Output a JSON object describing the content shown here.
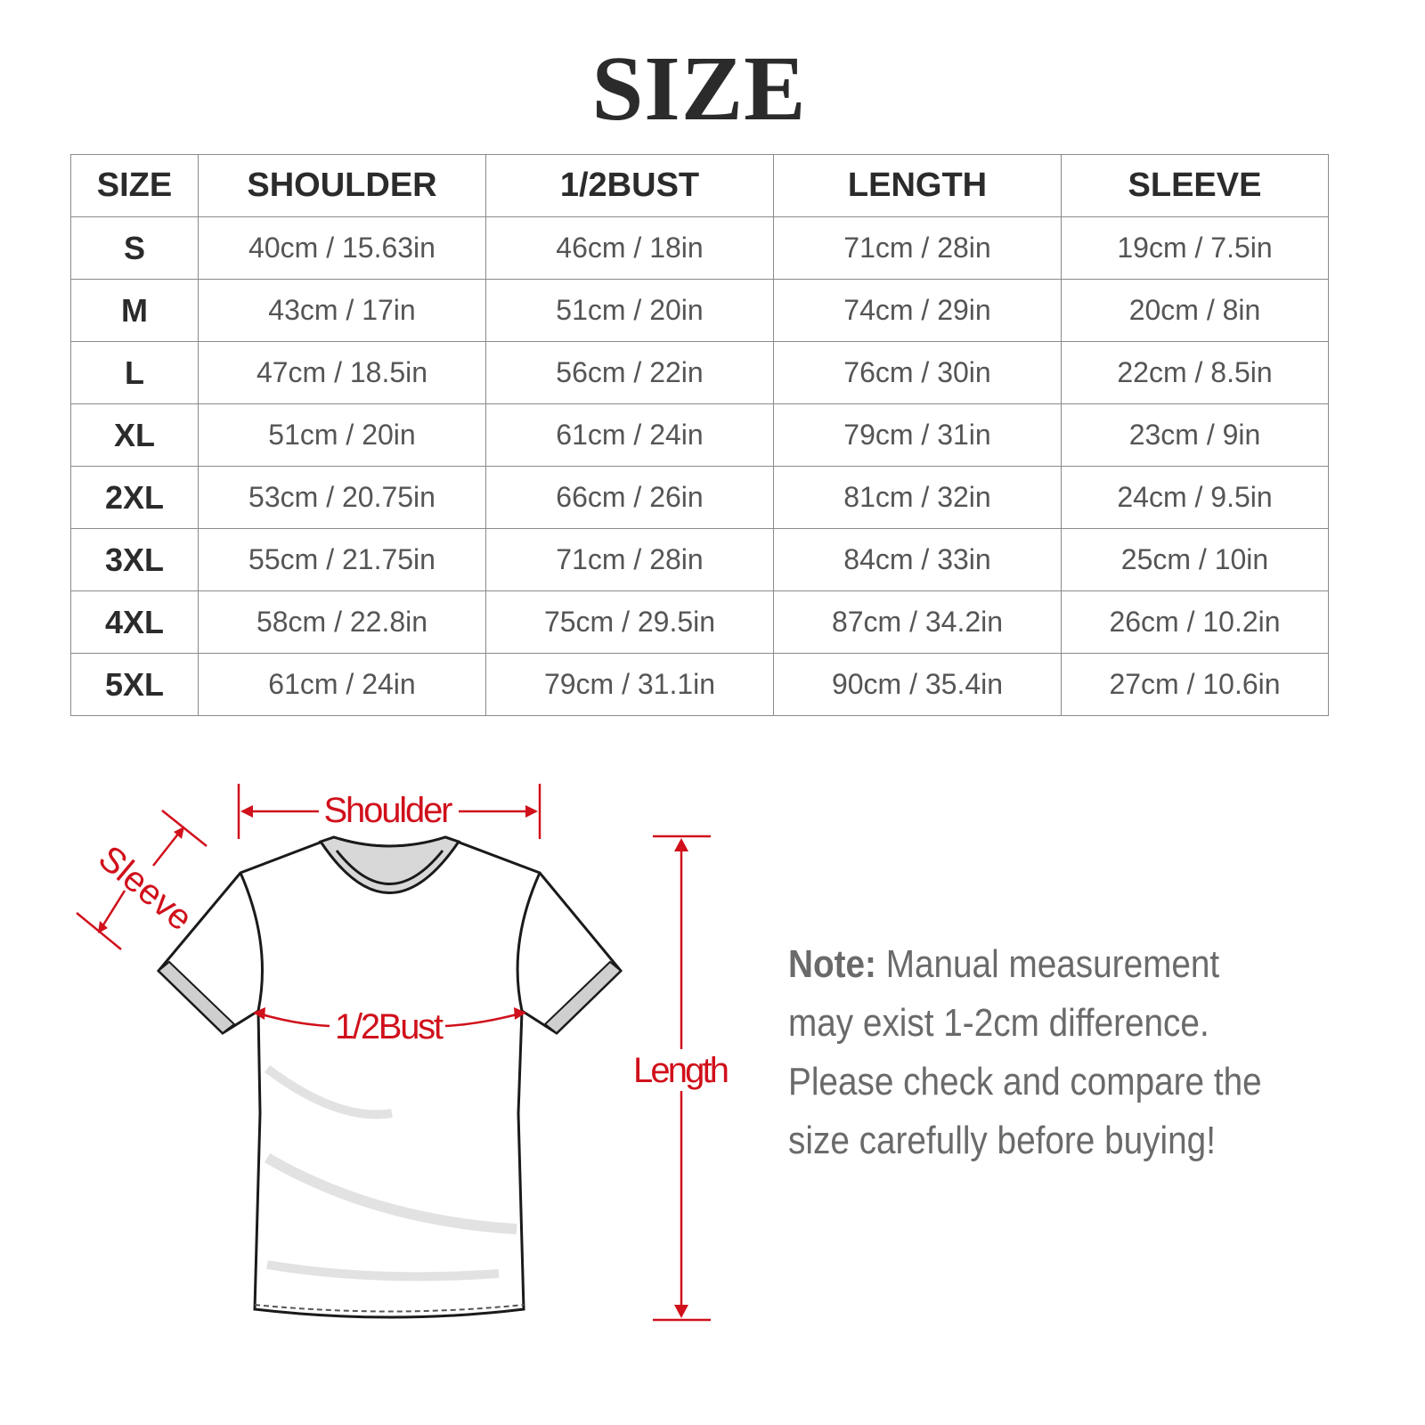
{
  "title": "SIZE",
  "table": {
    "headers": [
      "SIZE",
      "SHOULDER",
      "1/2BUST",
      "LENGTH",
      "SLEEVE"
    ],
    "rows": [
      [
        "S",
        "40cm / 15.63in",
        "46cm / 18in",
        "71cm / 28in",
        "19cm / 7.5in"
      ],
      [
        "M",
        "43cm / 17in",
        "51cm / 20in",
        "74cm / 29in",
        "20cm / 8in"
      ],
      [
        "L",
        "47cm / 18.5in",
        "56cm / 22in",
        "76cm / 30in",
        "22cm / 8.5in"
      ],
      [
        "XL",
        "51cm / 20in",
        "61cm / 24in",
        "79cm / 31in",
        "23cm / 9in"
      ],
      [
        "2XL",
        "53cm / 20.75in",
        "66cm / 26in",
        "81cm / 32in",
        "24cm / 9.5in"
      ],
      [
        "3XL",
        "55cm / 21.75in",
        "71cm / 28in",
        "84cm / 33in",
        "25cm / 10in"
      ],
      [
        "4XL",
        "58cm / 22.8in",
        "75cm / 29.5in",
        "87cm / 34.2in",
        "26cm / 10.2in"
      ],
      [
        "5XL",
        "61cm / 24in",
        "79cm / 31.1in",
        "90cm / 35.4in",
        "27cm / 10.6in"
      ]
    ]
  },
  "diagram": {
    "labels": {
      "shoulder": "Shoulder",
      "sleeve": "Sleeve",
      "bust": "1/2Bust",
      "length": "Length"
    },
    "accent_color": "#d0101b"
  },
  "note": {
    "label": "Note:",
    "text": " Manual measurement may exist 1-2cm difference. Please check and compare the size carefully before buying!"
  }
}
